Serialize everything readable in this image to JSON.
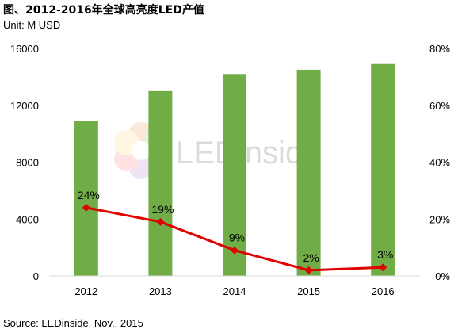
{
  "header": {
    "title": "图、2012-2016年全球高亮度LED产值",
    "unit": "Unit: M USD"
  },
  "footer": {
    "source": "Source: LEDinside, Nov., 2015"
  },
  "watermark": {
    "text": "LEDinside"
  },
  "colors": {
    "bar": "#70ad47",
    "line": "#e00000",
    "axis": "#d9d9d9"
  },
  "chart_data": {
    "type": "bar",
    "categories": [
      "2012",
      "2013",
      "2014",
      "2015",
      "2016"
    ],
    "series": [
      {
        "type": "bar",
        "axis": "left",
        "values": [
          10900,
          13000,
          14200,
          14500,
          14900
        ]
      },
      {
        "type": "line",
        "axis": "right",
        "values": [
          24,
          19,
          9,
          2,
          3
        ],
        "labels": [
          "24%",
          "19%",
          "9%",
          "2%",
          "3%"
        ]
      }
    ],
    "y_left": {
      "range": [
        0,
        16000
      ],
      "ticks": [
        "0",
        "4000",
        "8000",
        "12000",
        "16000"
      ]
    },
    "y_right": {
      "range": [
        0,
        80
      ],
      "ticks": [
        "0%",
        "20%",
        "40%",
        "60%",
        "80%"
      ]
    },
    "grid": false,
    "legend": "none"
  }
}
